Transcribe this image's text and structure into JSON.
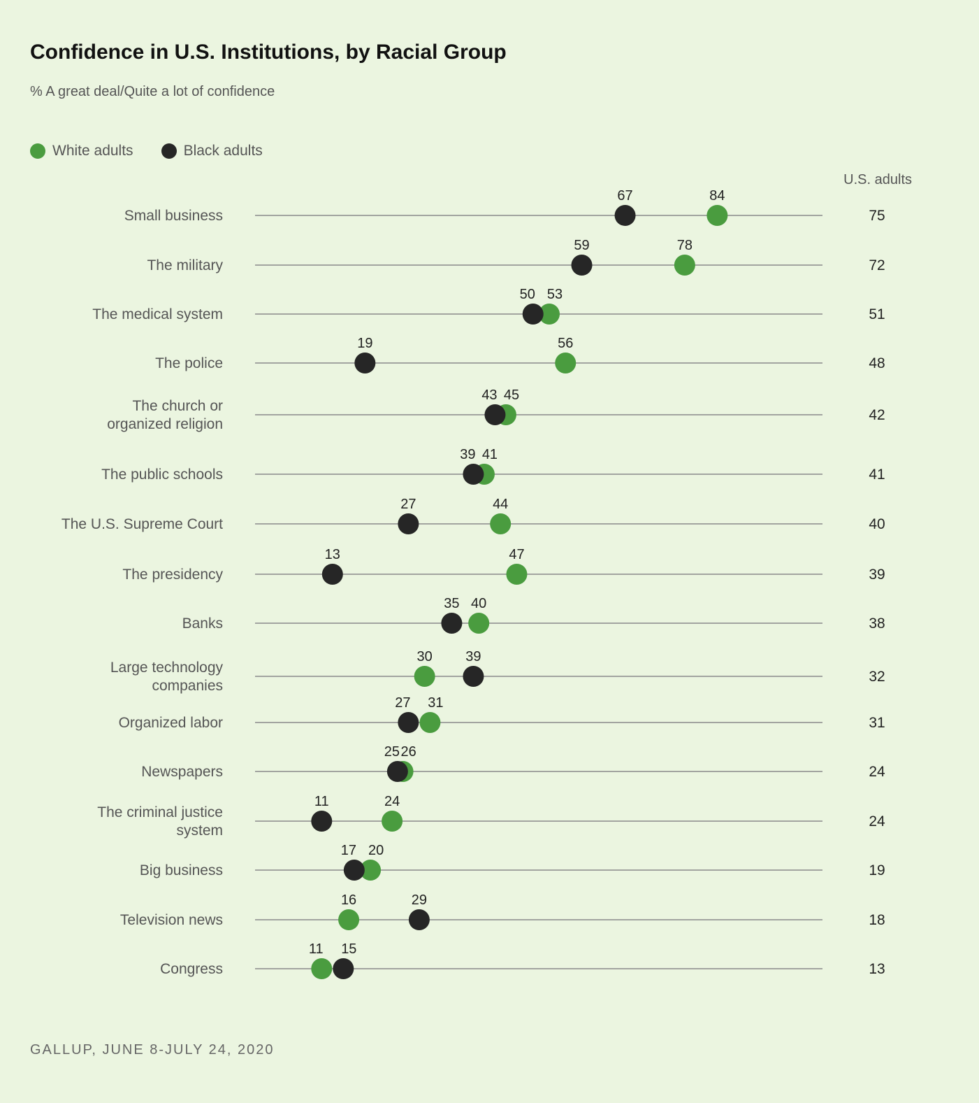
{
  "title": "Confidence in U.S. Institutions, by Racial Group",
  "subtitle": "% A great deal/Quite a lot of confidence",
  "legend": [
    {
      "label": "White adults",
      "color": "#4a9c3f"
    },
    {
      "label": "Black adults",
      "color": "#262626"
    }
  ],
  "total_column_header": "U.S. adults",
  "source": "GALLUP, JUNE 8-JULY 24, 2020",
  "chart_data": {
    "type": "dot",
    "xlim": [
      0,
      100
    ],
    "categories": [
      "Small business",
      "The military",
      "The medical system",
      "The police",
      "The church or organized religion",
      "The public schools",
      "The U.S. Supreme Court",
      "The presidency",
      "Banks",
      "Large technology companies",
      "Organized labor",
      "Newspapers",
      "The criminal justice system",
      "Big business",
      "Television news",
      "Congress"
    ],
    "category_lines": [
      [
        "Small business"
      ],
      [
        "The military"
      ],
      [
        "The medical system"
      ],
      [
        "The police"
      ],
      [
        "The church or",
        "organized religion"
      ],
      [
        "The public schools"
      ],
      [
        "The U.S. Supreme Court"
      ],
      [
        "The presidency"
      ],
      [
        "Banks"
      ],
      [
        "Large technology",
        "companies"
      ],
      [
        "Organized labor"
      ],
      [
        "Newspapers"
      ],
      [
        "The criminal justice",
        "system"
      ],
      [
        "Big business"
      ],
      [
        "Television news"
      ],
      [
        "Congress"
      ]
    ],
    "series": [
      {
        "name": "White adults",
        "values": [
          84,
          78,
          53,
          56,
          45,
          41,
          44,
          47,
          40,
          30,
          31,
          26,
          24,
          20,
          16,
          11
        ]
      },
      {
        "name": "Black adults",
        "values": [
          67,
          59,
          50,
          19,
          43,
          39,
          27,
          13,
          35,
          39,
          27,
          25,
          11,
          17,
          29,
          15
        ]
      }
    ],
    "us_adults": [
      75,
      72,
      51,
      48,
      42,
      41,
      40,
      39,
      38,
      32,
      31,
      24,
      24,
      19,
      18,
      13
    ]
  }
}
